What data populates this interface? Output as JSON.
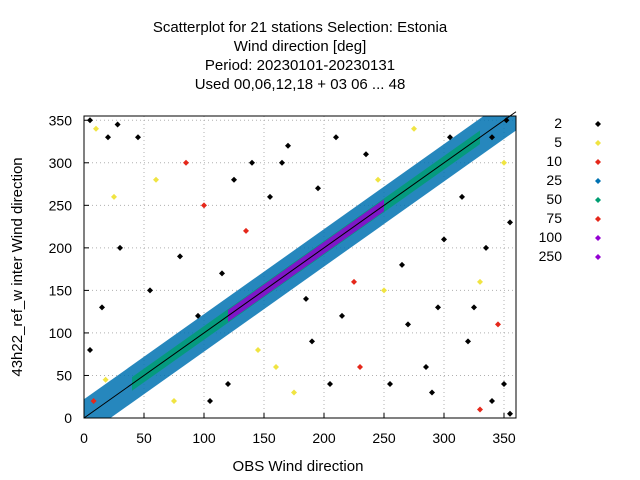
{
  "chart_data": {
    "type": "scatter",
    "title_lines": [
      "Scatterplot for   21 stations Selection: Estonia",
      "Wind direction [deg]",
      "Period: 20230101-20230131",
      "Used  00,06,12,18  + 03 06 ... 48"
    ],
    "xlabel": "OBS Wind direction",
    "ylabel": "43h22_ref_w inter Wind direction",
    "xlim": [
      0,
      360
    ],
    "ylim": [
      0,
      355
    ],
    "xticks": [
      0,
      50,
      100,
      150,
      200,
      250,
      300,
      350
    ],
    "yticks": [
      0,
      50,
      100,
      150,
      200,
      250,
      300,
      350
    ],
    "grid": true,
    "diagonal_reference_line": true,
    "legend_placement": "right",
    "density_classes": [
      {
        "label": "2",
        "min_count": 2,
        "color": "#000000"
      },
      {
        "label": "5",
        "min_count": 5,
        "color": "#f0e442"
      },
      {
        "label": "10",
        "min_count": 10,
        "color": "#e5281b"
      },
      {
        "label": "25",
        "min_count": 25,
        "color": "#0072b2"
      },
      {
        "label": "50",
        "min_count": 50,
        "color": "#009e73"
      },
      {
        "label": "75",
        "min_count": 75,
        "color": "#e5281b"
      },
      {
        "label": "100",
        "min_count": 100,
        "color": "#9400d3"
      },
      {
        "label": "250",
        "min_count": 250,
        "color": "#9400d3"
      }
    ],
    "diagonal_band": [
      {
        "class": "25",
        "half_width_deg": 22
      },
      {
        "class": "50",
        "half_width_deg": 8,
        "from_x": 40,
        "to_x": 330
      },
      {
        "class": "100",
        "half_width_deg": 7,
        "from_x": 120,
        "to_x": 250
      }
    ],
    "series_note_points": [
      {
        "x": 10,
        "y": 340
      },
      {
        "x": 20,
        "y": 330
      },
      {
        "x": 340,
        "y": 20
      },
      {
        "x": 350,
        "y": 40
      },
      {
        "x": 30,
        "y": 200
      },
      {
        "x": 60,
        "y": 280
      },
      {
        "x": 80,
        "y": 190
      },
      {
        "x": 100,
        "y": 250
      },
      {
        "x": 120,
        "y": 40
      },
      {
        "x": 140,
        "y": 300
      },
      {
        "x": 160,
        "y": 60
      },
      {
        "x": 170,
        "y": 320
      },
      {
        "x": 190,
        "y": 90
      },
      {
        "x": 210,
        "y": 330
      },
      {
        "x": 230,
        "y": 60
      },
      {
        "x": 250,
        "y": 150
      },
      {
        "x": 270,
        "y": 110
      },
      {
        "x": 290,
        "y": 30
      },
      {
        "x": 300,
        "y": 210
      },
      {
        "x": 320,
        "y": 90
      },
      {
        "x": 330,
        "y": 160
      },
      {
        "x": 345,
        "y": 110
      },
      {
        "x": 355,
        "y": 230
      },
      {
        "x": 15,
        "y": 130
      },
      {
        "x": 45,
        "y": 330
      },
      {
        "x": 75,
        "y": 20
      },
      {
        "x": 95,
        "y": 120
      },
      {
        "x": 115,
        "y": 170
      },
      {
        "x": 135,
        "y": 220
      },
      {
        "x": 155,
        "y": 260
      },
      {
        "x": 175,
        "y": 30
      },
      {
        "x": 195,
        "y": 270
      },
      {
        "x": 215,
        "y": 120
      },
      {
        "x": 235,
        "y": 310
      },
      {
        "x": 255,
        "y": 40
      },
      {
        "x": 275,
        "y": 340
      },
      {
        "x": 295,
        "y": 130
      },
      {
        "x": 315,
        "y": 260
      },
      {
        "x": 335,
        "y": 200
      },
      {
        "x": 5,
        "y": 80
      },
      {
        "x": 25,
        "y": 260
      },
      {
        "x": 55,
        "y": 150
      },
      {
        "x": 85,
        "y": 300
      },
      {
        "x": 105,
        "y": 20
      },
      {
        "x": 125,
        "y": 280
      },
      {
        "x": 145,
        "y": 80
      },
      {
        "x": 165,
        "y": 300
      },
      {
        "x": 185,
        "y": 140
      },
      {
        "x": 205,
        "y": 40
      },
      {
        "x": 225,
        "y": 160
      },
      {
        "x": 245,
        "y": 280
      },
      {
        "x": 265,
        "y": 180
      },
      {
        "x": 285,
        "y": 60
      },
      {
        "x": 305,
        "y": 330
      },
      {
        "x": 325,
        "y": 130
      },
      {
        "x": 350,
        "y": 300
      },
      {
        "x": 8,
        "y": 20
      },
      {
        "x": 352,
        "y": 350
      },
      {
        "x": 5,
        "y": 350
      },
      {
        "x": 355,
        "y": 5
      },
      {
        "x": 18,
        "y": 45
      },
      {
        "x": 340,
        "y": 330
      },
      {
        "x": 28,
        "y": 345
      },
      {
        "x": 330,
        "y": 10
      }
    ]
  }
}
